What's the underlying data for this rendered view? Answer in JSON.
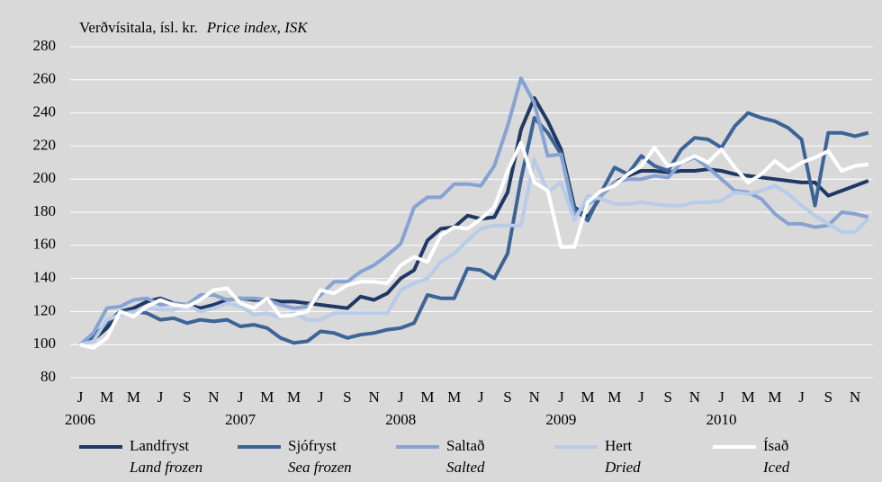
{
  "chart_data": {
    "type": "line",
    "title": "Verðvísitala, ísl. kr.",
    "title_en": "Price index, ISK",
    "categories": [
      "J",
      null,
      "M",
      null,
      "M",
      null,
      "J",
      null,
      "S",
      null,
      "N",
      null,
      "J",
      null,
      "M",
      null,
      "M",
      null,
      "J",
      null,
      "S",
      null,
      "N",
      null,
      "J",
      null,
      "M",
      null,
      "M",
      null,
      "J",
      null,
      "S",
      null,
      "N",
      null,
      "J",
      null,
      "M",
      null,
      "M",
      null,
      "J",
      null,
      "S",
      null,
      "N",
      null,
      "J",
      null,
      "M",
      null,
      "M",
      null,
      "J",
      null,
      "S",
      null,
      "N",
      null
    ],
    "year_labels": [
      "2006",
      "2007",
      "2008",
      "2009",
      "2010"
    ],
    "ylim": [
      80,
      280
    ],
    "yticks": [
      80,
      100,
      120,
      140,
      160,
      180,
      200,
      220,
      240,
      260,
      280
    ],
    "grid": true,
    "series": [
      {
        "name": "Landfryst",
        "name_en": "Land frozen",
        "color": "#1f3864",
        "values": [
          100,
          103,
          110,
          120,
          122,
          126,
          128,
          125,
          124,
          122,
          124,
          127,
          128,
          127,
          127,
          126,
          126,
          125,
          124,
          123,
          122,
          129,
          127,
          131,
          140,
          145,
          163,
          170,
          171,
          178,
          176,
          177,
          192,
          230,
          249,
          235,
          218,
          183,
          177,
          190,
          198,
          202,
          205,
          205,
          204,
          205,
          205,
          206,
          205,
          203,
          202,
          201,
          200,
          199,
          198,
          198,
          190,
          193,
          196,
          199
        ]
      },
      {
        "name": "Sjófryst",
        "name_en": "Sea frozen",
        "color": "#3c6497",
        "values": [
          100,
          105,
          113,
          120,
          120,
          119,
          115,
          116,
          113,
          115,
          114,
          115,
          111,
          112,
          110,
          104,
          101,
          102,
          108,
          107,
          104,
          106,
          107,
          109,
          110,
          113,
          130,
          128,
          128,
          146,
          145,
          140,
          155,
          200,
          237,
          228,
          215,
          182,
          175,
          192,
          207,
          203,
          214,
          208,
          205,
          218,
          225,
          224,
          219,
          232,
          240,
          237,
          235,
          231,
          224,
          184,
          228,
          228,
          226,
          228
        ]
      },
      {
        "name": "Saltað",
        "name_en": "Salted",
        "color": "#86a3d3",
        "values": [
          100,
          107,
          122,
          123,
          127,
          128,
          124,
          125,
          124,
          130,
          130,
          127,
          128,
          128,
          127,
          124,
          122,
          123,
          130,
          138,
          138,
          144,
          148,
          154,
          161,
          183,
          189,
          189,
          197,
          197,
          196,
          208,
          232,
          261,
          246,
          214,
          215,
          178,
          185,
          190,
          198,
          200,
          200,
          202,
          201,
          210,
          213,
          207,
          200,
          193,
          192,
          188,
          179,
          173,
          173,
          171,
          172,
          180,
          179,
          177
        ]
      },
      {
        "name": "Hert",
        "name_en": "Dried",
        "color": "#b8cbe8",
        "values": [
          100,
          102,
          115,
          118,
          120,
          122,
          121,
          121,
          124,
          120,
          122,
          125,
          123,
          118,
          119,
          116,
          119,
          115,
          115,
          119,
          119,
          119,
          119,
          119,
          133,
          137,
          140,
          150,
          155,
          163,
          170,
          172,
          172,
          172,
          212,
          192,
          198,
          175,
          190,
          188,
          185,
          185,
          186,
          185,
          184,
          184,
          186,
          186,
          187,
          192,
          191,
          193,
          196,
          191,
          184,
          178,
          173,
          168,
          168,
          176
        ]
      },
      {
        "name": "Ísað",
        "name_en": "Iced",
        "color": "#ffffff",
        "values": [
          100,
          98,
          104,
          120,
          117,
          123,
          127,
          124,
          123,
          127,
          133,
          134,
          125,
          122,
          128,
          117,
          118,
          120,
          133,
          131,
          136,
          138,
          138,
          137,
          148,
          153,
          150,
          166,
          171,
          170,
          176,
          183,
          205,
          222,
          198,
          193,
          159,
          159,
          186,
          193,
          196,
          203,
          208,
          219,
          208,
          210,
          214,
          210,
          218,
          207,
          198,
          203,
          211,
          205,
          210,
          213,
          217,
          205,
          208,
          209
        ]
      }
    ]
  }
}
